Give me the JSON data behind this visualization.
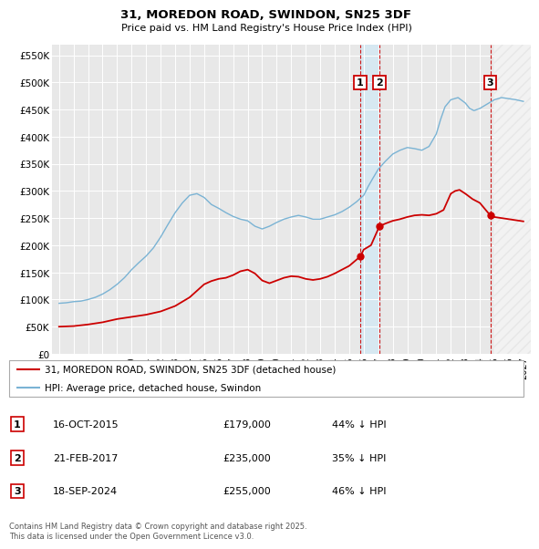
{
  "title": "31, MOREDON ROAD, SWINDON, SN25 3DF",
  "subtitle": "Price paid vs. HM Land Registry's House Price Index (HPI)",
  "background_color": "#ffffff",
  "plot_bg_color": "#e8e8e8",
  "grid_color": "#ffffff",
  "hpi_color": "#7ab3d4",
  "price_color": "#cc0000",
  "hpi_years": [
    1995,
    1995.5,
    1996,
    1996.5,
    1997,
    1997.5,
    1998,
    1998.5,
    1999,
    1999.5,
    2000,
    2000.5,
    2001,
    2001.5,
    2002,
    2002.5,
    2003,
    2003.5,
    2004,
    2004.5,
    2005,
    2005.5,
    2006,
    2006.5,
    2007,
    2007.5,
    2008,
    2008.5,
    2009,
    2009.5,
    2010,
    2010.5,
    2011,
    2011.5,
    2012,
    2012.5,
    2013,
    2013.5,
    2014,
    2014.5,
    2015,
    2015.5,
    2016,
    2016.3,
    2016.6,
    2017,
    2017.5,
    2018,
    2018.5,
    2019,
    2019.5,
    2020,
    2020.5,
    2021,
    2021.3,
    2021.6,
    2022,
    2022.5,
    2023,
    2023.3,
    2023.6,
    2024,
    2024.5,
    2025,
    2025.5,
    2026,
    2026.5,
    2027
  ],
  "hpi_values": [
    93000,
    94000,
    96000,
    97000,
    100000,
    104000,
    110000,
    118000,
    128000,
    140000,
    155000,
    168000,
    180000,
    195000,
    215000,
    238000,
    260000,
    278000,
    292000,
    295000,
    288000,
    275000,
    268000,
    260000,
    253000,
    248000,
    245000,
    235000,
    230000,
    235000,
    242000,
    248000,
    252000,
    255000,
    252000,
    248000,
    248000,
    252000,
    256000,
    262000,
    270000,
    280000,
    292000,
    308000,
    322000,
    340000,
    355000,
    368000,
    375000,
    380000,
    378000,
    375000,
    382000,
    405000,
    432000,
    455000,
    468000,
    472000,
    462000,
    452000,
    448000,
    452000,
    460000,
    468000,
    472000,
    470000,
    468000,
    465000
  ],
  "price_years": [
    1995,
    1996,
    1997,
    1998,
    1999,
    2000,
    2001,
    2002,
    2003,
    2003.5,
    2004,
    2004.5,
    2005,
    2005.5,
    2006,
    2006.5,
    2007,
    2007.5,
    2008,
    2008.5,
    2009,
    2009.5,
    2010,
    2010.5,
    2011,
    2011.5,
    2012,
    2012.5,
    2013,
    2013.5,
    2014,
    2014.5,
    2015,
    2015.75,
    2016,
    2016.5,
    2017.08,
    2017.5,
    2018,
    2018.5,
    2019,
    2019.5,
    2020,
    2020.5,
    2021,
    2021.5,
    2022,
    2022.3,
    2022.6,
    2023,
    2023.5,
    2024,
    2024.72,
    2025,
    2025.5,
    2026,
    2026.5,
    2027
  ],
  "price_values": [
    50000,
    51000,
    54000,
    58000,
    64000,
    68000,
    72000,
    78000,
    88000,
    96000,
    104000,
    116000,
    128000,
    134000,
    138000,
    140000,
    145000,
    152000,
    155000,
    148000,
    135000,
    130000,
    135000,
    140000,
    143000,
    142000,
    138000,
    136000,
    138000,
    142000,
    148000,
    155000,
    162000,
    179000,
    192000,
    200000,
    235000,
    240000,
    245000,
    248000,
    252000,
    255000,
    256000,
    255000,
    258000,
    265000,
    295000,
    300000,
    302000,
    295000,
    285000,
    278000,
    255000,
    252000,
    250000,
    248000,
    246000,
    244000
  ],
  "transactions": [
    {
      "num": 1,
      "year": 2015.75,
      "price": 179000,
      "date": "16-OCT-2015",
      "pct": "44%",
      "dir": "↓"
    },
    {
      "num": 2,
      "year": 2017.08,
      "price": 235000,
      "date": "21-FEB-2017",
      "pct": "35%",
      "dir": "↓"
    },
    {
      "num": 3,
      "year": 2024.72,
      "price": 255000,
      "date": "18-SEP-2024",
      "pct": "46%",
      "dir": "↓"
    }
  ],
  "span_color": "#d0e8f5",
  "hatch_color": "#cccccc",
  "ylim": [
    0,
    570000
  ],
  "xlim": [
    1994.5,
    2027.5
  ],
  "yticks": [
    0,
    50000,
    100000,
    150000,
    200000,
    250000,
    300000,
    350000,
    400000,
    450000,
    500000,
    550000
  ],
  "ytick_labels": [
    "£0",
    "£50K",
    "£100K",
    "£150K",
    "£200K",
    "£250K",
    "£300K",
    "£350K",
    "£400K",
    "£450K",
    "£500K",
    "£550K"
  ],
  "xticks": [
    1995,
    1996,
    1997,
    1998,
    1999,
    2000,
    2001,
    2002,
    2003,
    2004,
    2005,
    2006,
    2007,
    2008,
    2009,
    2010,
    2011,
    2012,
    2013,
    2014,
    2015,
    2016,
    2017,
    2018,
    2019,
    2020,
    2021,
    2022,
    2023,
    2024,
    2025,
    2026,
    2027
  ],
  "footer": "Contains HM Land Registry data © Crown copyright and database right 2025.\nThis data is licensed under the Open Government Licence v3.0.",
  "legend_entries": [
    "31, MOREDON ROAD, SWINDON, SN25 3DF (detached house)",
    "HPI: Average price, detached house, Swindon"
  ]
}
